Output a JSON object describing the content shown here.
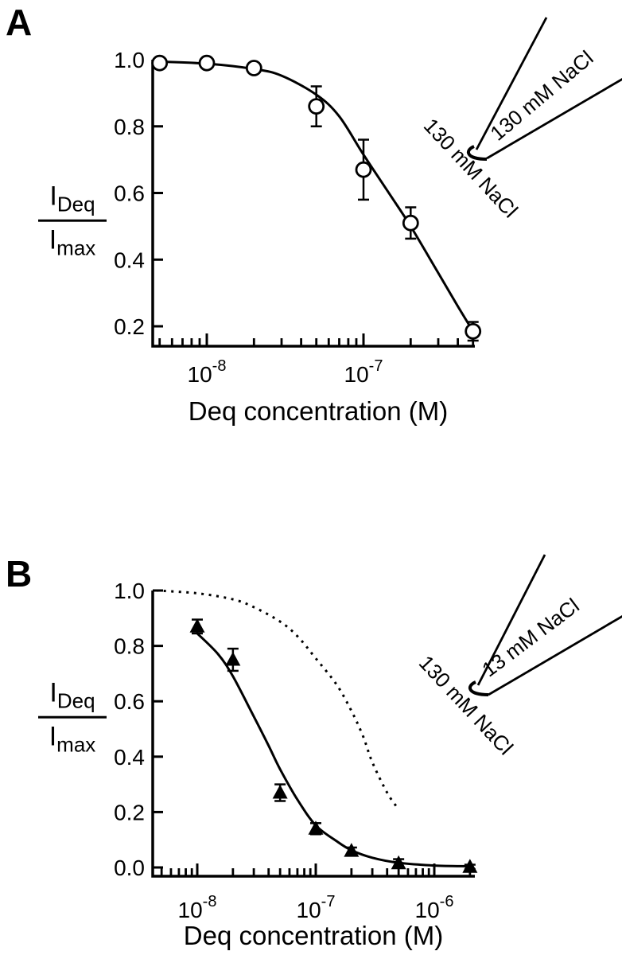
{
  "figure": {
    "background_color": "#ffffff",
    "ink_color": "#000000",
    "panels": [
      {
        "letter": "A",
        "y_axis_label": {
          "numerator_main": "I",
          "numerator_sub": "Deq",
          "denominator_main": "I",
          "denominator_sub": "max"
        },
        "x_axis_title": "Deq concentration (M)",
        "pipette_diagram": {
          "inside_label": "130 mM NaCl",
          "outside_label": "130 mM NaCl"
        }
      },
      {
        "letter": "B",
        "y_axis_label": {
          "numerator_main": "I",
          "numerator_sub": "Deq",
          "denominator_main": "I",
          "denominator_sub": "max"
        },
        "x_axis_title": "Deq concentration (M)",
        "pipette_diagram": {
          "inside_label": "13 mM NaCl",
          "outside_label": "130 mM NaCl"
        }
      }
    ]
  },
  "chart_data": [
    {
      "type": "scatter",
      "panel": "A",
      "x_scale": "log",
      "xlabel": "Deq concentration (M)",
      "ylabel": "I_Deq / I_max",
      "xlim": [
        4.5e-09,
        5.15e-07
      ],
      "ylim": [
        0.14,
        1.0
      ],
      "grid": false,
      "y_ticks": [
        {
          "value": 1.0,
          "label": "1.0"
        },
        {
          "value": 0.8,
          "label": "0.8"
        },
        {
          "value": 0.6,
          "label": "0.6"
        },
        {
          "value": 0.4,
          "label": "0.4"
        },
        {
          "value": 0.2,
          "label": "0.2"
        }
      ],
      "x_major_ticks": [
        {
          "value": 1e-08,
          "mantissa": "10",
          "exponent": "-8"
        },
        {
          "value": 1e-07,
          "mantissa": "10",
          "exponent": "-7"
        }
      ],
      "series": [
        {
          "name": "open circles",
          "marker": "open-circle",
          "points": [
            {
              "x": 5e-09,
              "y": 0.99,
              "err": 0
            },
            {
              "x": 1e-08,
              "y": 0.99,
              "err": 0
            },
            {
              "x": 2e-08,
              "y": 0.975,
              "err": 0
            },
            {
              "x": 5e-08,
              "y": 0.86,
              "err": 0.06
            },
            {
              "x": 1e-07,
              "y": 0.67,
              "err": 0.09
            },
            {
              "x": 2e-07,
              "y": 0.51,
              "err": 0.047
            },
            {
              "x": 5e-07,
              "y": 0.185,
              "err": 0.028
            }
          ]
        }
      ],
      "fit_curves": [
        {
          "name": "sigmoidal fit",
          "style": "solid",
          "points": [
            [
              4.5e-09,
              0.995
            ],
            [
              1e-08,
              0.988
            ],
            [
              2e-08,
              0.972
            ],
            [
              3e-08,
              0.952
            ],
            [
              5e-08,
              0.895
            ],
            [
              7e-08,
              0.83
            ],
            [
              1e-07,
              0.715
            ],
            [
              1.5e-07,
              0.59
            ],
            [
              2e-07,
              0.5
            ],
            [
              3e-07,
              0.36
            ],
            [
              4e-07,
              0.26
            ],
            [
              5e-07,
              0.185
            ]
          ]
        }
      ]
    },
    {
      "type": "scatter",
      "panel": "B",
      "x_scale": "log",
      "xlabel": "Deq concentration (M)",
      "ylabel": "I_Deq / I_max",
      "xlim": [
        4.2e-09,
        2.25e-06
      ],
      "ylim": [
        0.0,
        1.0
      ],
      "grid": false,
      "y_ticks": [
        {
          "value": 1.0,
          "label": "1.0"
        },
        {
          "value": 0.8,
          "label": "0.8"
        },
        {
          "value": 0.6,
          "label": "0.6"
        },
        {
          "value": 0.4,
          "label": "0.4"
        },
        {
          "value": 0.2,
          "label": "0.2"
        },
        {
          "value": 0.0,
          "label": "0.0"
        }
      ],
      "x_major_ticks": [
        {
          "value": 1e-08,
          "mantissa": "10",
          "exponent": "-8"
        },
        {
          "value": 1e-07,
          "mantissa": "10",
          "exponent": "-7"
        },
        {
          "value": 1e-06,
          "mantissa": "10",
          "exponent": "-6"
        }
      ],
      "series": [
        {
          "name": "filled triangles",
          "marker": "filled-triangle",
          "points": [
            {
              "x": 1e-08,
              "y": 0.87,
              "err": 0.025
            },
            {
              "x": 2e-08,
              "y": 0.75,
              "err": 0.04
            },
            {
              "x": 5e-08,
              "y": 0.27,
              "err": 0.03
            },
            {
              "x": 1e-07,
              "y": 0.14,
              "err": 0.02
            },
            {
              "x": 2e-07,
              "y": 0.06,
              "err": 0.012
            },
            {
              "x": 5e-07,
              "y": 0.015,
              "err": 0.015
            },
            {
              "x": 2e-06,
              "y": 0.002,
              "err": 0.008
            }
          ]
        }
      ],
      "fit_curves": [
        {
          "name": "sigmoidal fit",
          "style": "solid",
          "points": [
            [
              1e-08,
              0.845
            ],
            [
              1.5e-08,
              0.77
            ],
            [
              2e-08,
              0.69
            ],
            [
              3e-08,
              0.545
            ],
            [
              4e-08,
              0.44
            ],
            [
              5e-08,
              0.355
            ],
            [
              7e-08,
              0.245
            ],
            [
              1e-07,
              0.152
            ],
            [
              1.5e-07,
              0.095
            ],
            [
              2e-07,
              0.062
            ],
            [
              3e-07,
              0.035
            ],
            [
              5e-07,
              0.017
            ],
            [
              1e-06,
              0.007
            ],
            [
              2e-06,
              0.004
            ]
          ]
        },
        {
          "name": "dashed reference curve",
          "style": "dashed",
          "points": [
            [
              4.5e-09,
              1.0
            ],
            [
              1e-08,
              0.99
            ],
            [
              2e-08,
              0.968
            ],
            [
              3e-08,
              0.94
            ],
            [
              5e-08,
              0.888
            ],
            [
              7e-08,
              0.835
            ],
            [
              1e-07,
              0.755
            ],
            [
              1.5e-07,
              0.66
            ],
            [
              2e-07,
              0.565
            ],
            [
              2.5e-07,
              0.475
            ],
            [
              3e-07,
              0.38
            ],
            [
              4e-07,
              0.27
            ],
            [
              5e-07,
              0.21
            ]
          ]
        }
      ]
    }
  ]
}
